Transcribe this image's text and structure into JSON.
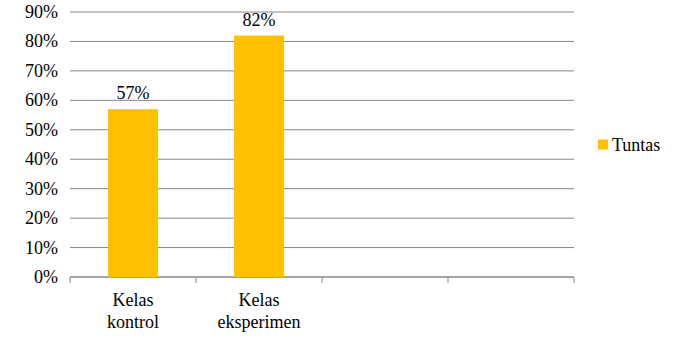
{
  "chart_data": {
    "type": "bar",
    "categories": [
      "Kelas kontrol",
      "Kelas eksperimen",
      null,
      null
    ],
    "series": [
      {
        "name": "Tuntas",
        "color": "#ffc000",
        "values": [
          57,
          82,
          null,
          null
        ],
        "value_labels": [
          "57%",
          "82%",
          null,
          null
        ]
      }
    ],
    "ylim": [
      0,
      90
    ],
    "yticks": [
      {
        "value": 0,
        "label": "0%"
      },
      {
        "value": 10,
        "label": "10%"
      },
      {
        "value": 20,
        "label": "20%"
      },
      {
        "value": 30,
        "label": "30%"
      },
      {
        "value": 40,
        "label": "40%"
      },
      {
        "value": 50,
        "label": "50%"
      },
      {
        "value": 60,
        "label": "60%"
      },
      {
        "value": 70,
        "label": "70%"
      },
      {
        "value": 80,
        "label": "80%"
      },
      {
        "value": 90,
        "label": "90%"
      }
    ],
    "grid": true,
    "data_labels": true,
    "legend": "right"
  }
}
